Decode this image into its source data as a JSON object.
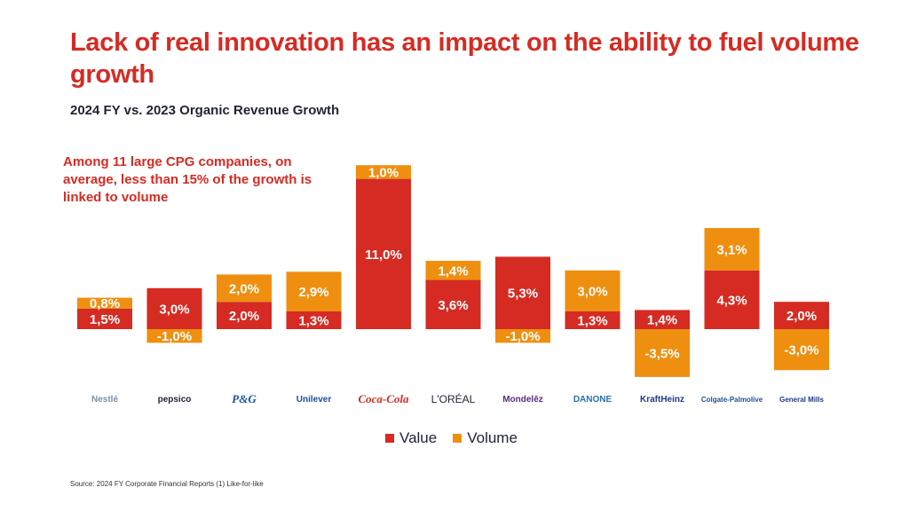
{
  "slide": {
    "title": "Lack of real innovation has an impact on the ability to fuel volume growth",
    "subtitle": "2024 FY vs. 2023 Organic Revenue Growth",
    "annotation": "Among 11 large CPG companies, on average, less than 15% of the growth is linked to volume",
    "source": "Source: 2024 FY Corporate Financial Reports (1) Like-for-like"
  },
  "colors": {
    "value": "#d52b23",
    "volume": "#ef8f0f",
    "title": "#d52b23",
    "text": "#1f2335"
  },
  "chart_data": {
    "type": "bar",
    "stacked": true,
    "title": "2024 FY vs. 2023 Organic Revenue Growth",
    "xlabel": "",
    "ylabel": "",
    "ylim": [
      -3.5,
      12.0
    ],
    "grid": false,
    "legend_position": "bottom",
    "categories": [
      "Nestlé",
      "PepsiCo",
      "P&G",
      "Unilever",
      "Coca-Cola",
      "L'Oréal",
      "Mondelez",
      "Danone",
      "Kraft Heinz",
      "Colgate-Palmolive",
      "General Mills"
    ],
    "series": [
      {
        "name": "Value",
        "values": [
          1.5,
          3.0,
          2.0,
          1.3,
          11.0,
          3.6,
          5.3,
          1.3,
          1.4,
          4.3,
          2.0
        ],
        "labels": [
          "1,5%",
          "3,0%",
          "2,0%",
          "1,3%",
          "11,0%",
          "3,6%",
          "5,3%",
          "1,3%",
          "1,4%",
          "4,3%",
          "2,0%"
        ]
      },
      {
        "name": "Volume",
        "values": [
          0.8,
          -1.0,
          2.0,
          2.9,
          1.0,
          1.4,
          -1.0,
          3.0,
          -3.5,
          3.1,
          -3.0
        ],
        "labels": [
          "0,8%",
          "-1,0%",
          "2,0%",
          "2,9%",
          "1,0%",
          "1,4%",
          "-1,0%",
          "3,0%",
          "-3,5%",
          "3,1%",
          "-3,0%"
        ]
      }
    ]
  },
  "logos": [
    {
      "name": "nestle",
      "text": "Nestlé",
      "color": "#7a8fa6"
    },
    {
      "name": "pepsico",
      "text": "pepsico",
      "color": "#1f2335"
    },
    {
      "name": "pg",
      "text": "P&G",
      "color": "#1d4fa0"
    },
    {
      "name": "unilever",
      "text": "Unilever",
      "color": "#1f4e9c"
    },
    {
      "name": "coca-cola",
      "text": "Coca-Cola",
      "color": "#d52b23"
    },
    {
      "name": "loreal",
      "text": "L'ORÉAL",
      "color": "#1f2335"
    },
    {
      "name": "mondelez",
      "text": "Mondelēz",
      "color": "#5a2a82"
    },
    {
      "name": "danone",
      "text": "DANONE",
      "color": "#2a6fb5"
    },
    {
      "name": "kraft-heinz",
      "text": "KraftHeinz",
      "color": "#1f3a8a"
    },
    {
      "name": "colgate-palmolive",
      "text": "Colgate-Palmolive",
      "color": "#1f4e9c"
    },
    {
      "name": "general-mills",
      "text": "General Mills",
      "color": "#1f3a8a"
    }
  ],
  "legend": [
    {
      "label": "Value",
      "series": "value"
    },
    {
      "label": "Volume",
      "series": "volume"
    }
  ]
}
